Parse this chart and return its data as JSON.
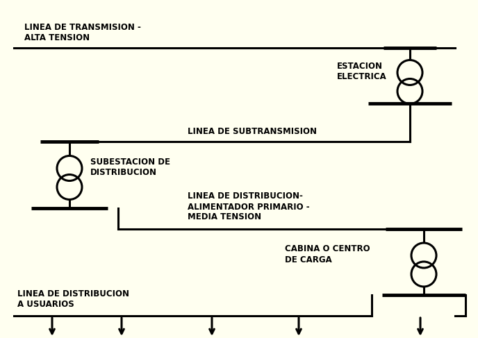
{
  "bg_color": "#fffff0",
  "line_color": "#000000",
  "text_color": "#000000",
  "lw": 2.2,
  "font_size": 8.5,
  "font_weight": "bold",
  "fig_width": 6.88,
  "fig_height": 4.87,
  "labels": {
    "linea_transmision": "LINEA DE TRANSMISION -\nALTA TENSION",
    "estacion_electrica": "ESTACION\nELECTRICA",
    "linea_subtransmision": "LINEA DE SUBTRANSMISION",
    "subestacion": "SUBESTACION DE\nDISTRIBUCION",
    "linea_distribucion_prim": "LINEA DE DISTRIBUCION-\nALIMENTADOR PRIMARIO -\nMEDIA TENSION",
    "cabina": "CABINA O CENTRO\nDE CARGA",
    "linea_usuarios": "LINEA DE DISTRIBUCION\nA USUARIOS"
  }
}
